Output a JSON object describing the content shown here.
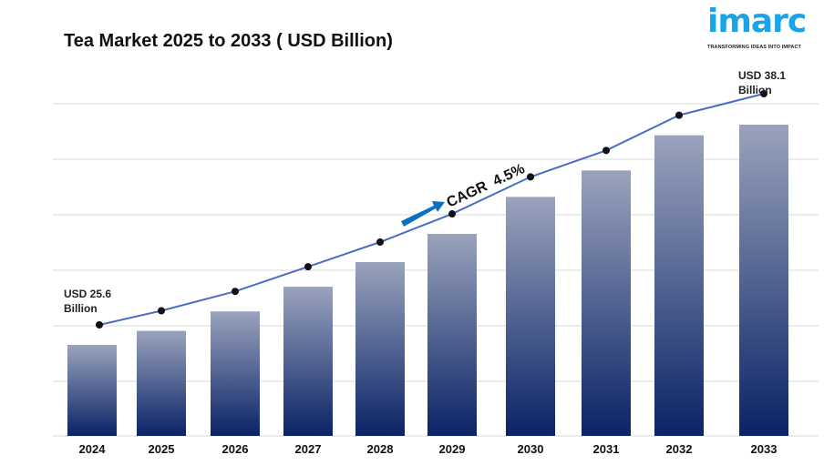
{
  "chart_data": {
    "type": "bar",
    "title": "Tea Market 2025 to 2033 ( USD Billion)",
    "categories": [
      "2024",
      "2025",
      "2026",
      "2027",
      "2028",
      "2029",
      "2030",
      "2031",
      "2032",
      "2033"
    ],
    "values": [
      25.6,
      26.4,
      27.5,
      28.9,
      30.3,
      31.9,
      34.0,
      35.5,
      37.5,
      38.1
    ],
    "trend_line": true,
    "annotations": {
      "start": {
        "line1": "USD 25.6",
        "line2": "Billion"
      },
      "end": {
        "line1": "USD 38.1",
        "line2": "Billion"
      },
      "cagr": "CAGR  4.5%"
    },
    "grid": true,
    "xlabel": "",
    "ylabel": "",
    "colors": {
      "bar_top": "#9aa3bd",
      "bar_bottom": "#0a2366",
      "line": "#4a6cc7",
      "dot": "#111111",
      "arrow": "#0c6fc0",
      "grid": "#d9d9d9"
    }
  },
  "logo": {
    "word": "imarc",
    "tagline": "TRANSFORMING IDEAS INTO IMPACT"
  }
}
